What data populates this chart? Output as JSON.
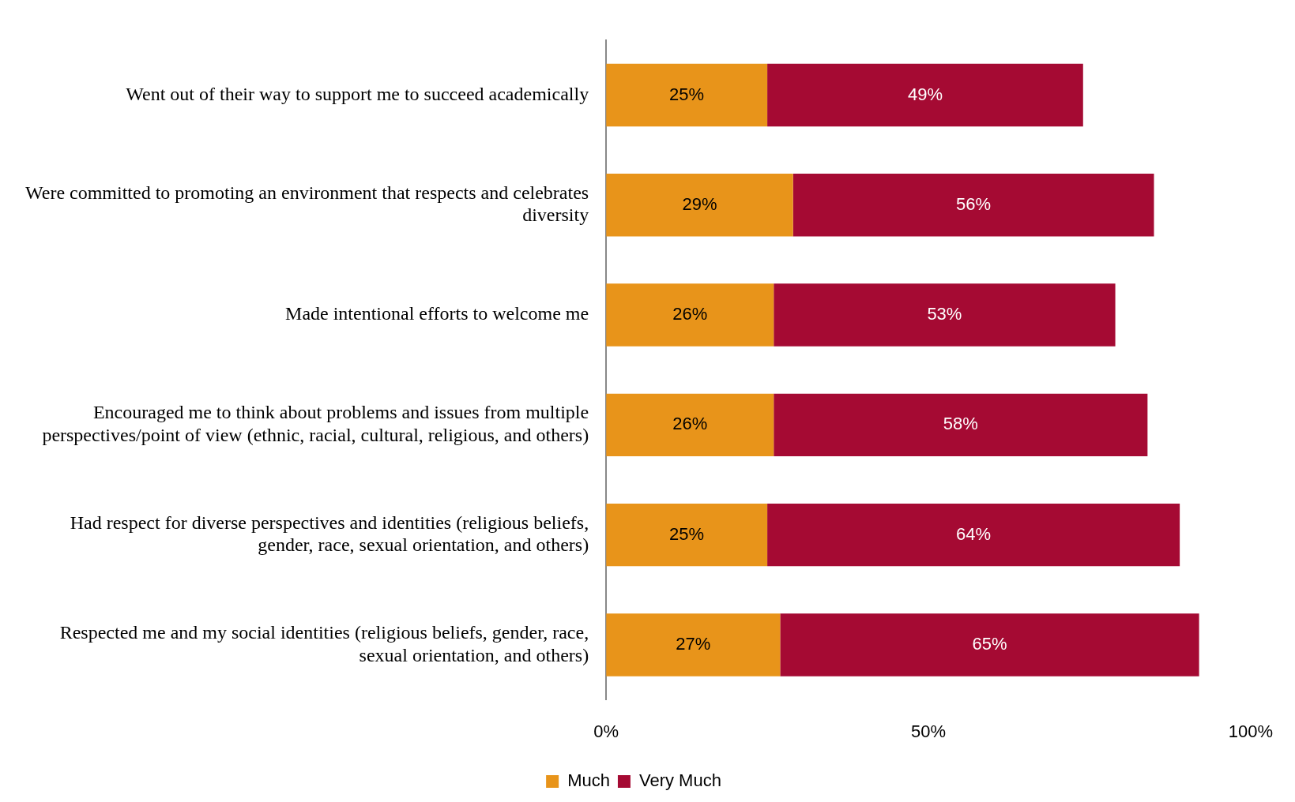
{
  "chart_data": {
    "type": "bar",
    "orientation": "horizontal",
    "stacked": true,
    "categories": [
      "Went out of their way to support me to succeed academically",
      "Were committed to promoting an environment that respects and celebrates diversity",
      "Made intentional efforts to welcome me",
      "Encouraged me to think about problems and issues from multiple perspectives/point of view (ethnic, racial, cultural, religious, and others)",
      "Had respect for diverse perspectives and identities (religious beliefs, gender, race, sexual orientation, and others)",
      "Respected me and my social identities (religious beliefs, gender, race, sexual orientation, and others)"
    ],
    "series": [
      {
        "name": "Much",
        "color": "#e8941a",
        "values": [
          25,
          29,
          26,
          26,
          25,
          27
        ],
        "value_labels": [
          "25%",
          "29%",
          "26%",
          "26%",
          "25%",
          "27%"
        ]
      },
      {
        "name": "Very Much",
        "color": "#a50a33",
        "values": [
          49,
          56,
          53,
          58,
          64,
          65
        ],
        "value_labels": [
          "49%",
          "56%",
          "53%",
          "58%",
          "64%",
          "65%"
        ]
      }
    ],
    "xlim": [
      0,
      100
    ],
    "xticks": [
      {
        "value": 0,
        "label": "0%"
      },
      {
        "value": 50,
        "label": "50%"
      },
      {
        "value": 100,
        "label": "100%"
      }
    ],
    "grid": false,
    "legend": "bottom"
  }
}
